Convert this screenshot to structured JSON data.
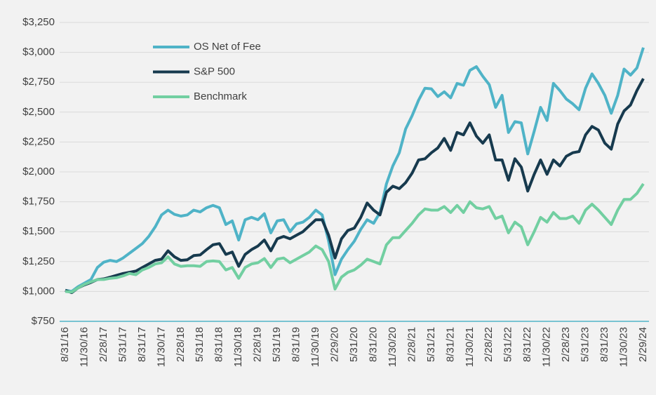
{
  "chart_data": {
    "type": "line",
    "categories": [
      "8/31/16",
      null,
      null,
      "11/30/16",
      null,
      null,
      "2/28/17",
      null,
      null,
      "5/31/17",
      null,
      null,
      "8/31/17",
      null,
      null,
      "11/30/17",
      null,
      null,
      "2/28/18",
      null,
      null,
      "5/31/18",
      null,
      null,
      "8/31/18",
      null,
      null,
      "11/30/18",
      null,
      null,
      "2/28/19",
      null,
      null,
      "5/31/19",
      null,
      null,
      "8/31/19",
      null,
      null,
      "11/30/19",
      null,
      null,
      "2/29/20",
      null,
      null,
      "5/31/20",
      null,
      null,
      "8/31/20",
      null,
      null,
      "11/30/20",
      null,
      null,
      "2/28/21",
      null,
      null,
      "5/31/21",
      null,
      null,
      "8/31/21",
      null,
      null,
      "11/30/21",
      null,
      null,
      "2/28/22",
      null,
      null,
      "5/31/22",
      null,
      null,
      "8/31/22",
      null,
      null,
      "11/30/22",
      null,
      null,
      "2/28/23",
      null,
      null,
      "5/31/23",
      null,
      null,
      "8/31/23",
      null,
      null,
      "11/30/23",
      null,
      null,
      "2/29/24"
    ],
    "series": [
      {
        "name": "OS Net of Fee",
        "color": "#4fb3c7",
        "values": [
          1010,
          1000,
          1040,
          1070,
          1100,
          1200,
          1245,
          1260,
          1250,
          1280,
          1320,
          1360,
          1400,
          1460,
          1540,
          1640,
          1680,
          1645,
          1630,
          1640,
          1680,
          1665,
          1700,
          1720,
          1700,
          1560,
          1590,
          1430,
          1600,
          1620,
          1600,
          1650,
          1490,
          1590,
          1600,
          1500,
          1565,
          1580,
          1620,
          1680,
          1640,
          1420,
          1140,
          1270,
          1350,
          1420,
          1520,
          1600,
          1570,
          1660,
          1900,
          2050,
          2160,
          2360,
          2470,
          2600,
          2700,
          2695,
          2630,
          2670,
          2620,
          2740,
          2725,
          2850,
          2880,
          2800,
          2730,
          2540,
          2640,
          2330,
          2420,
          2410,
          2150,
          2340,
          2540,
          2430,
          2740,
          2680,
          2610,
          2570,
          2520,
          2700,
          2820,
          2740,
          2640,
          2490,
          2640,
          2860,
          2810,
          2870,
          3040
        ]
      },
      {
        "name": "S&P 500",
        "color": "#173a4e",
        "values": [
          1010,
          990,
          1030,
          1055,
          1075,
          1100,
          1105,
          1120,
          1135,
          1150,
          1160,
          1170,
          1200,
          1230,
          1260,
          1270,
          1340,
          1290,
          1260,
          1265,
          1300,
          1305,
          1350,
          1390,
          1400,
          1310,
          1330,
          1210,
          1310,
          1350,
          1380,
          1430,
          1340,
          1440,
          1460,
          1440,
          1470,
          1500,
          1550,
          1600,
          1600,
          1470,
          1280,
          1440,
          1510,
          1530,
          1620,
          1740,
          1680,
          1640,
          1830,
          1880,
          1860,
          1910,
          1990,
          2100,
          2110,
          2160,
          2200,
          2280,
          2180,
          2330,
          2310,
          2410,
          2300,
          2240,
          2310,
          2100,
          2100,
          1930,
          2110,
          2040,
          1840,
          1980,
          2100,
          1980,
          2100,
          2050,
          2130,
          2160,
          2170,
          2310,
          2380,
          2350,
          2240,
          2190,
          2400,
          2510,
          2560,
          2680,
          2780
        ]
      },
      {
        "name": "Benchmark",
        "color": "#72cfa1",
        "values": [
          1000,
          995,
          1030,
          1060,
          1080,
          1100,
          1100,
          1110,
          1115,
          1130,
          1150,
          1140,
          1180,
          1200,
          1230,
          1240,
          1290,
          1230,
          1210,
          1215,
          1215,
          1210,
          1250,
          1255,
          1250,
          1180,
          1200,
          1110,
          1200,
          1230,
          1240,
          1275,
          1200,
          1270,
          1280,
          1240,
          1270,
          1300,
          1330,
          1380,
          1350,
          1250,
          1020,
          1120,
          1160,
          1180,
          1220,
          1270,
          1250,
          1230,
          1390,
          1450,
          1450,
          1510,
          1570,
          1640,
          1690,
          1680,
          1680,
          1710,
          1660,
          1720,
          1660,
          1750,
          1700,
          1690,
          1710,
          1610,
          1630,
          1490,
          1580,
          1540,
          1390,
          1500,
          1620,
          1580,
          1660,
          1610,
          1610,
          1630,
          1570,
          1680,
          1730,
          1680,
          1620,
          1560,
          1680,
          1770,
          1770,
          1820,
          1900
        ]
      }
    ],
    "ylim": [
      750,
      3250
    ],
    "yticks": [
      {
        "value": 750,
        "label": "$750"
      },
      {
        "value": 1000,
        "label": "$1,000"
      },
      {
        "value": 1250,
        "label": "$1,250"
      },
      {
        "value": 1500,
        "label": "$1,500"
      },
      {
        "value": 1750,
        "label": "$1,750"
      },
      {
        "value": 2000,
        "label": "$2,000"
      },
      {
        "value": 2250,
        "label": "$2,250"
      },
      {
        "value": 2500,
        "label": "$2,500"
      },
      {
        "value": 2750,
        "label": "$2,750"
      },
      {
        "value": 3000,
        "label": "$3,000"
      },
      {
        "value": 3250,
        "label": "$3,250"
      }
    ],
    "grid": true,
    "legend": "upper-left"
  }
}
